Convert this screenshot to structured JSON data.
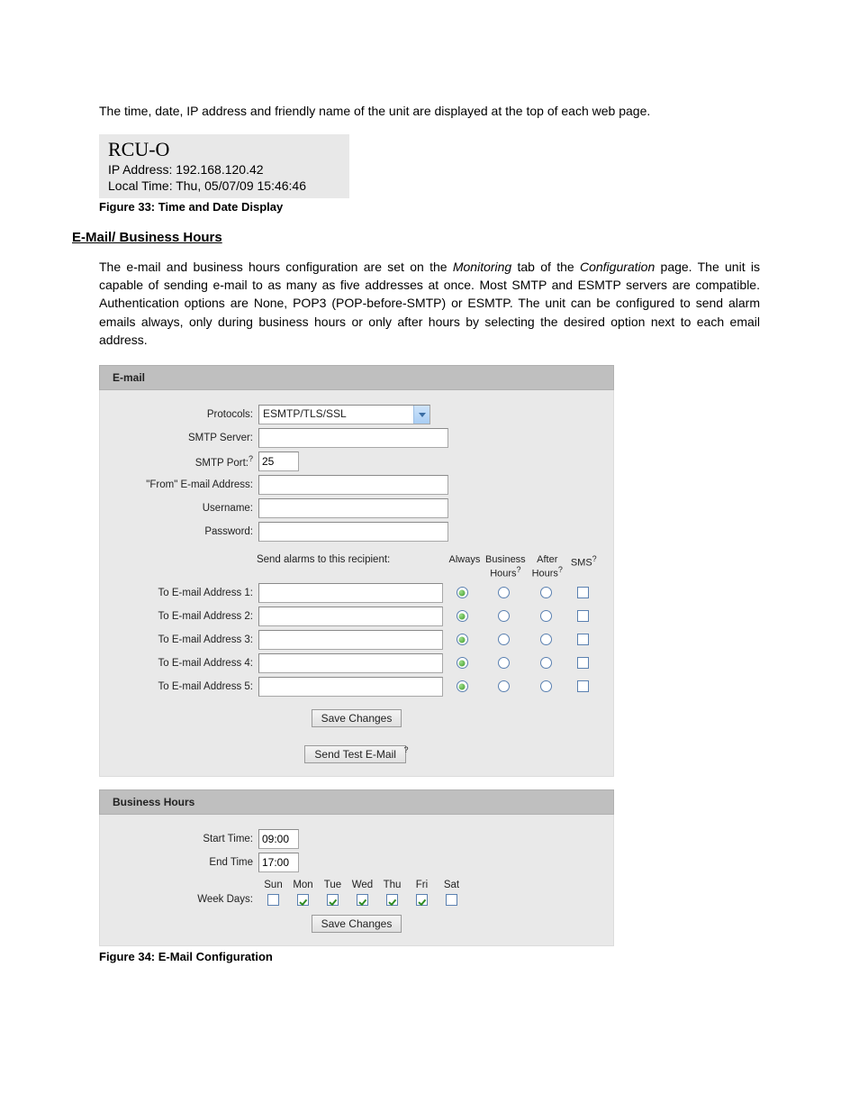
{
  "intro_text": "The time, date, IP address and friendly name of the unit are displayed at the top of each web page.",
  "fig33": {
    "title": "RCU-O",
    "ip_line": "IP Address: 192.168.120.42",
    "time_line": "Local Time: Thu, 05/07/09 15:46:46",
    "caption": "Figure 33: Time and Date Display"
  },
  "section_heading": "E-Mail/ Business Hours",
  "body2": {
    "pre": "The e-mail and business hours configuration are set on the ",
    "it1": "Monitoring",
    "mid1": " tab of the ",
    "it2": "Configuration",
    "post": " page.  The unit is capable of sending e-mail to as many as five addresses at once.  Most SMTP and ESMTP servers are compatible.  Authentication options are None, POP3 (POP-before-SMTP) or ESMTP. The unit can be configured to send alarm emails always, only during business hours or only after hours by selecting the desired option next to each email address."
  },
  "email_panel": {
    "header": "E-mail",
    "labels": {
      "protocols": "Protocols:",
      "smtp_server": "SMTP Server:",
      "smtp_port": "SMTP Port:",
      "from_addr": "\"From\" E-mail Address:",
      "username": "Username:",
      "password": "Password:",
      "send_alarms": "Send alarms to this recipient:",
      "always": "Always",
      "business_hours": "Business Hours",
      "after_hours": "After Hours",
      "sms": "SMS",
      "sup": "?"
    },
    "addr_labels": [
      "To E-mail Address 1:",
      "To E-mail Address 2:",
      "To E-mail Address 3:",
      "To E-mail Address 4:",
      "To E-mail Address 5:"
    ],
    "values": {
      "protocol": "ESMTP/TLS/SSL",
      "smtp_server": "",
      "smtp_port": "25",
      "from_addr": "",
      "username": "",
      "password": "",
      "addresses": [
        "",
        "",
        "",
        "",
        ""
      ],
      "choice": [
        "always",
        "always",
        "always",
        "always",
        "always"
      ],
      "sms": [
        false,
        false,
        false,
        false,
        false
      ]
    },
    "buttons": {
      "save": "Save Changes",
      "test": "Send Test E-Mail"
    }
  },
  "bh_panel": {
    "header": "Business Hours",
    "labels": {
      "start": "Start Time:",
      "end": "End Time",
      "weekdays": "Week Days:"
    },
    "values": {
      "start": "09:00",
      "end": "17:00"
    },
    "days": [
      "Sun",
      "Mon",
      "Tue",
      "Wed",
      "Thu",
      "Fri",
      "Sat"
    ],
    "days_checked": [
      false,
      true,
      true,
      true,
      true,
      true,
      false
    ],
    "buttons": {
      "save": "Save Changes"
    }
  },
  "fig34_caption": "Figure 34: E-Mail Configuration",
  "colors": {
    "panel_header_bg": "#bfbfbf",
    "panel_body_bg": "#e9e9e9",
    "radio_border": "#5a80b0",
    "radio_fill": "#3f9a2a",
    "page_bg": "#ffffff"
  }
}
